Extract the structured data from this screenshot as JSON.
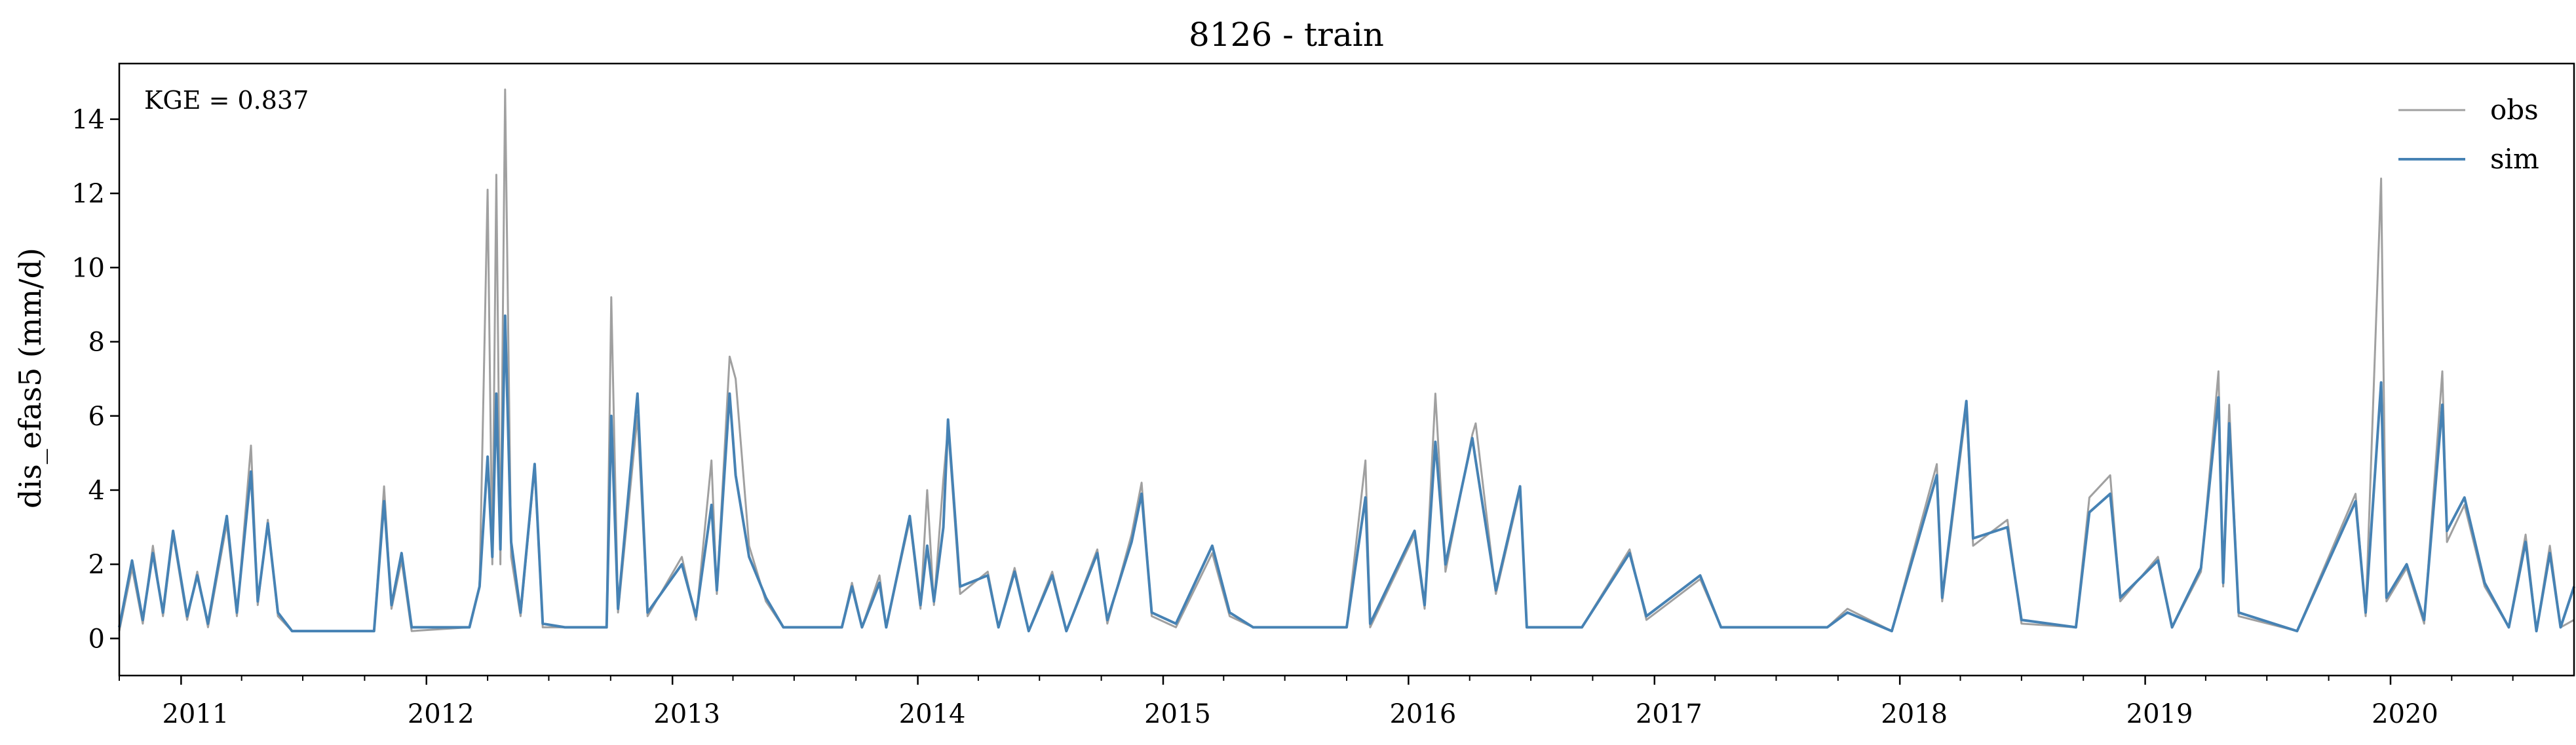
{
  "chart_data": {
    "type": "line",
    "title": "8126 - train",
    "xlabel": "",
    "ylabel": "dis_efas5 (mm/d)",
    "annotation": "KGE = 0.837",
    "xlim": [
      "2010-10-01",
      "2020-09-30"
    ],
    "ylim": [
      -1,
      15.5
    ],
    "yticks": [
      0,
      2,
      4,
      6,
      8,
      10,
      12,
      14
    ],
    "xticks": [
      {
        "label": "2011",
        "date": "2011-01-01"
      },
      {
        "label": "2012",
        "date": "2012-01-01"
      },
      {
        "label": "2013",
        "date": "2013-01-01"
      },
      {
        "label": "2014",
        "date": "2014-01-01"
      },
      {
        "label": "2015",
        "date": "2015-01-01"
      },
      {
        "label": "2016",
        "date": "2016-01-01"
      },
      {
        "label": "2017",
        "date": "2017-01-01"
      },
      {
        "label": "2018",
        "date": "2018-01-01"
      },
      {
        "label": "2019",
        "date": "2019-01-01"
      },
      {
        "label": "2020",
        "date": "2020-01-01"
      }
    ],
    "grid": false,
    "legend": {
      "position": "top-right"
    },
    "series": [
      {
        "name": "obs",
        "color": "#a0a0a0",
        "points": [
          [
            "2010-10-01",
            0.2
          ],
          [
            "2010-10-20",
            1.9
          ],
          [
            "2010-11-05",
            0.4
          ],
          [
            "2010-11-20",
            2.5
          ],
          [
            "2010-12-05",
            0.6
          ],
          [
            "2010-12-20",
            2.8
          ],
          [
            "2011-01-10",
            0.5
          ],
          [
            "2011-01-25",
            1.8
          ],
          [
            "2011-02-10",
            0.3
          ],
          [
            "2011-03-10",
            3.1
          ],
          [
            "2011-03-25",
            0.6
          ],
          [
            "2011-04-15",
            5.2
          ],
          [
            "2011-04-25",
            0.9
          ],
          [
            "2011-05-10",
            3.2
          ],
          [
            "2011-05-25",
            0.6
          ],
          [
            "2011-06-15",
            0.2
          ],
          [
            "2011-08-01",
            0.2
          ],
          [
            "2011-10-15",
            0.2
          ],
          [
            "2011-10-30",
            4.1
          ],
          [
            "2011-11-10",
            0.8
          ],
          [
            "2011-11-25",
            2.1
          ],
          [
            "2011-12-10",
            0.2
          ],
          [
            "2012-03-05",
            0.3
          ],
          [
            "2012-03-20",
            1.4
          ],
          [
            "2012-04-01",
            12.1
          ],
          [
            "2012-04-08",
            2.0
          ],
          [
            "2012-04-14",
            12.5
          ],
          [
            "2012-04-20",
            2.0
          ],
          [
            "2012-04-27",
            14.8
          ],
          [
            "2012-05-06",
            2.2
          ],
          [
            "2012-05-20",
            0.6
          ],
          [
            "2012-06-10",
            4.6
          ],
          [
            "2012-06-22",
            0.3
          ],
          [
            "2012-07-25",
            0.3
          ],
          [
            "2012-09-25",
            0.3
          ],
          [
            "2012-10-02",
            9.2
          ],
          [
            "2012-10-12",
            0.7
          ],
          [
            "2012-11-10",
            6.0
          ],
          [
            "2012-11-25",
            0.6
          ],
          [
            "2013-01-15",
            2.2
          ],
          [
            "2013-02-05",
            0.5
          ],
          [
            "2013-02-28",
            4.8
          ],
          [
            "2013-03-08",
            1.2
          ],
          [
            "2013-03-27",
            7.6
          ],
          [
            "2013-04-05",
            7.0
          ],
          [
            "2013-04-25",
            2.5
          ],
          [
            "2013-05-20",
            1.0
          ],
          [
            "2013-06-15",
            0.3
          ],
          [
            "2013-09-10",
            0.3
          ],
          [
            "2013-09-25",
            1.5
          ],
          [
            "2013-10-10",
            0.3
          ],
          [
            "2013-11-05",
            1.7
          ],
          [
            "2013-11-15",
            0.3
          ],
          [
            "2013-12-20",
            3.2
          ],
          [
            "2014-01-05",
            0.8
          ],
          [
            "2014-01-15",
            4.0
          ],
          [
            "2014-01-25",
            0.9
          ],
          [
            "2014-02-08",
            4.3
          ],
          [
            "2014-02-15",
            5.7
          ],
          [
            "2014-03-05",
            1.2
          ],
          [
            "2014-04-15",
            1.8
          ],
          [
            "2014-05-01",
            0.3
          ],
          [
            "2014-05-25",
            1.9
          ],
          [
            "2014-06-15",
            0.2
          ],
          [
            "2014-07-20",
            1.8
          ],
          [
            "2014-08-10",
            0.2
          ],
          [
            "2014-09-25",
            2.4
          ],
          [
            "2014-10-10",
            0.4
          ],
          [
            "2014-11-15",
            2.8
          ],
          [
            "2014-11-30",
            4.2
          ],
          [
            "2014-12-15",
            0.6
          ],
          [
            "2015-01-20",
            0.3
          ],
          [
            "2015-03-15",
            2.3
          ],
          [
            "2015-04-10",
            0.6
          ],
          [
            "2015-05-15",
            0.3
          ],
          [
            "2015-10-01",
            0.3
          ],
          [
            "2015-10-29",
            4.8
          ],
          [
            "2015-11-05",
            0.3
          ],
          [
            "2016-01-10",
            2.8
          ],
          [
            "2016-01-25",
            0.8
          ],
          [
            "2016-02-10",
            6.6
          ],
          [
            "2016-02-25",
            1.8
          ],
          [
            "2016-04-05",
            5.5
          ],
          [
            "2016-04-10",
            5.8
          ],
          [
            "2016-05-10",
            1.2
          ],
          [
            "2016-06-15",
            4.0
          ],
          [
            "2016-06-25",
            0.3
          ],
          [
            "2016-09-15",
            0.3
          ],
          [
            "2016-11-25",
            2.4
          ],
          [
            "2016-12-20",
            0.5
          ],
          [
            "2017-03-10",
            1.6
          ],
          [
            "2017-04-10",
            0.3
          ],
          [
            "2017-09-15",
            0.3
          ],
          [
            "2017-10-15",
            0.8
          ],
          [
            "2017-12-20",
            0.2
          ],
          [
            "2018-02-25",
            4.7
          ],
          [
            "2018-03-05",
            1.0
          ],
          [
            "2018-04-10",
            6.2
          ],
          [
            "2018-04-20",
            2.5
          ],
          [
            "2018-06-10",
            3.2
          ],
          [
            "2018-07-01",
            0.4
          ],
          [
            "2018-09-20",
            0.3
          ],
          [
            "2018-10-10",
            3.8
          ],
          [
            "2018-11-10",
            4.4
          ],
          [
            "2018-11-25",
            1.0
          ],
          [
            "2019-01-20",
            2.2
          ],
          [
            "2019-02-10",
            0.3
          ],
          [
            "2019-03-25",
            1.8
          ],
          [
            "2019-04-20",
            7.2
          ],
          [
            "2019-04-27",
            1.4
          ],
          [
            "2019-05-06",
            6.3
          ],
          [
            "2019-05-20",
            0.6
          ],
          [
            "2019-08-15",
            0.2
          ],
          [
            "2019-11-10",
            3.9
          ],
          [
            "2019-11-25",
            0.6
          ],
          [
            "2019-12-18",
            12.4
          ],
          [
            "2019-12-26",
            1.0
          ],
          [
            "2020-01-25",
            1.9
          ],
          [
            "2020-02-20",
            0.4
          ],
          [
            "2020-03-18",
            7.2
          ],
          [
            "2020-03-25",
            2.6
          ],
          [
            "2020-04-20",
            3.6
          ],
          [
            "2020-05-20",
            1.4
          ],
          [
            "2020-06-25",
            0.3
          ],
          [
            "2020-07-20",
            2.8
          ],
          [
            "2020-08-05",
            0.2
          ],
          [
            "2020-08-25",
            2.5
          ],
          [
            "2020-09-10",
            0.3
          ],
          [
            "2020-09-30",
            0.5
          ]
        ]
      },
      {
        "name": "sim",
        "color": "#4682b4",
        "points": [
          [
            "2010-10-01",
            0.3
          ],
          [
            "2010-10-20",
            2.1
          ],
          [
            "2010-11-05",
            0.5
          ],
          [
            "2010-11-20",
            2.3
          ],
          [
            "2010-12-05",
            0.7
          ],
          [
            "2010-12-20",
            2.9
          ],
          [
            "2011-01-10",
            0.6
          ],
          [
            "2011-01-25",
            1.7
          ],
          [
            "2011-02-10",
            0.4
          ],
          [
            "2011-03-10",
            3.3
          ],
          [
            "2011-03-25",
            0.7
          ],
          [
            "2011-04-15",
            4.5
          ],
          [
            "2011-04-25",
            1.0
          ],
          [
            "2011-05-10",
            3.1
          ],
          [
            "2011-05-25",
            0.7
          ],
          [
            "2011-06-15",
            0.2
          ],
          [
            "2011-08-01",
            0.2
          ],
          [
            "2011-10-15",
            0.2
          ],
          [
            "2011-10-30",
            3.7
          ],
          [
            "2011-11-10",
            0.9
          ],
          [
            "2011-11-25",
            2.3
          ],
          [
            "2011-12-10",
            0.3
          ],
          [
            "2012-03-05",
            0.3
          ],
          [
            "2012-03-20",
            1.4
          ],
          [
            "2012-04-01",
            4.9
          ],
          [
            "2012-04-08",
            2.2
          ],
          [
            "2012-04-14",
            6.6
          ],
          [
            "2012-04-20",
            2.4
          ],
          [
            "2012-04-27",
            8.7
          ],
          [
            "2012-05-06",
            2.6
          ],
          [
            "2012-05-20",
            0.7
          ],
          [
            "2012-06-10",
            4.7
          ],
          [
            "2012-06-22",
            0.4
          ],
          [
            "2012-07-25",
            0.3
          ],
          [
            "2012-09-25",
            0.3
          ],
          [
            "2012-10-02",
            6.0
          ],
          [
            "2012-10-12",
            0.8
          ],
          [
            "2012-11-10",
            6.6
          ],
          [
            "2012-11-25",
            0.7
          ],
          [
            "2013-01-15",
            2.0
          ],
          [
            "2013-02-05",
            0.6
          ],
          [
            "2013-02-28",
            3.6
          ],
          [
            "2013-03-08",
            1.3
          ],
          [
            "2013-03-27",
            6.6
          ],
          [
            "2013-04-05",
            4.4
          ],
          [
            "2013-04-25",
            2.2
          ],
          [
            "2013-05-20",
            1.1
          ],
          [
            "2013-06-15",
            0.3
          ],
          [
            "2013-09-10",
            0.3
          ],
          [
            "2013-09-25",
            1.4
          ],
          [
            "2013-10-10",
            0.3
          ],
          [
            "2013-11-05",
            1.5
          ],
          [
            "2013-11-15",
            0.3
          ],
          [
            "2013-12-20",
            3.3
          ],
          [
            "2014-01-05",
            0.9
          ],
          [
            "2014-01-15",
            2.5
          ],
          [
            "2014-01-25",
            1.0
          ],
          [
            "2014-02-08",
            3.0
          ],
          [
            "2014-02-15",
            5.9
          ],
          [
            "2014-03-05",
            1.4
          ],
          [
            "2014-04-15",
            1.7
          ],
          [
            "2014-05-01",
            0.3
          ],
          [
            "2014-05-25",
            1.8
          ],
          [
            "2014-06-15",
            0.2
          ],
          [
            "2014-07-20",
            1.7
          ],
          [
            "2014-08-10",
            0.2
          ],
          [
            "2014-09-25",
            2.3
          ],
          [
            "2014-10-10",
            0.5
          ],
          [
            "2014-11-15",
            2.6
          ],
          [
            "2014-11-30",
            3.9
          ],
          [
            "2014-12-15",
            0.7
          ],
          [
            "2015-01-20",
            0.4
          ],
          [
            "2015-03-15",
            2.5
          ],
          [
            "2015-04-10",
            0.7
          ],
          [
            "2015-05-15",
            0.3
          ],
          [
            "2015-10-01",
            0.3
          ],
          [
            "2015-10-29",
            3.8
          ],
          [
            "2015-11-05",
            0.4
          ],
          [
            "2016-01-10",
            2.9
          ],
          [
            "2016-01-25",
            0.9
          ],
          [
            "2016-02-10",
            5.3
          ],
          [
            "2016-02-25",
            2.0
          ],
          [
            "2016-04-05",
            5.4
          ],
          [
            "2016-04-10",
            4.8
          ],
          [
            "2016-05-10",
            1.3
          ],
          [
            "2016-06-15",
            4.1
          ],
          [
            "2016-06-25",
            0.3
          ],
          [
            "2016-09-15",
            0.3
          ],
          [
            "2016-11-25",
            2.3
          ],
          [
            "2016-12-20",
            0.6
          ],
          [
            "2017-03-10",
            1.7
          ],
          [
            "2017-04-10",
            0.3
          ],
          [
            "2017-09-15",
            0.3
          ],
          [
            "2017-10-15",
            0.7
          ],
          [
            "2017-12-20",
            0.2
          ],
          [
            "2018-02-25",
            4.4
          ],
          [
            "2018-03-05",
            1.1
          ],
          [
            "2018-04-10",
            6.4
          ],
          [
            "2018-04-20",
            2.7
          ],
          [
            "2018-06-10",
            3.0
          ],
          [
            "2018-07-01",
            0.5
          ],
          [
            "2018-09-20",
            0.3
          ],
          [
            "2018-10-10",
            3.4
          ],
          [
            "2018-11-10",
            3.9
          ],
          [
            "2018-11-25",
            1.1
          ],
          [
            "2019-01-20",
            2.1
          ],
          [
            "2019-02-10",
            0.3
          ],
          [
            "2019-03-25",
            1.9
          ],
          [
            "2019-04-20",
            6.5
          ],
          [
            "2019-04-27",
            1.5
          ],
          [
            "2019-05-06",
            5.8
          ],
          [
            "2019-05-20",
            0.7
          ],
          [
            "2019-08-15",
            0.2
          ],
          [
            "2019-11-10",
            3.7
          ],
          [
            "2019-11-25",
            0.7
          ],
          [
            "2019-12-18",
            6.9
          ],
          [
            "2019-12-26",
            1.1
          ],
          [
            "2020-01-25",
            2.0
          ],
          [
            "2020-02-20",
            0.5
          ],
          [
            "2020-03-18",
            6.3
          ],
          [
            "2020-03-25",
            2.9
          ],
          [
            "2020-04-20",
            3.8
          ],
          [
            "2020-05-20",
            1.5
          ],
          [
            "2020-06-25",
            0.3
          ],
          [
            "2020-07-20",
            2.6
          ],
          [
            "2020-08-05",
            0.2
          ],
          [
            "2020-08-25",
            2.3
          ],
          [
            "2020-09-10",
            0.3
          ],
          [
            "2020-09-30",
            1.4
          ]
        ]
      }
    ]
  }
}
